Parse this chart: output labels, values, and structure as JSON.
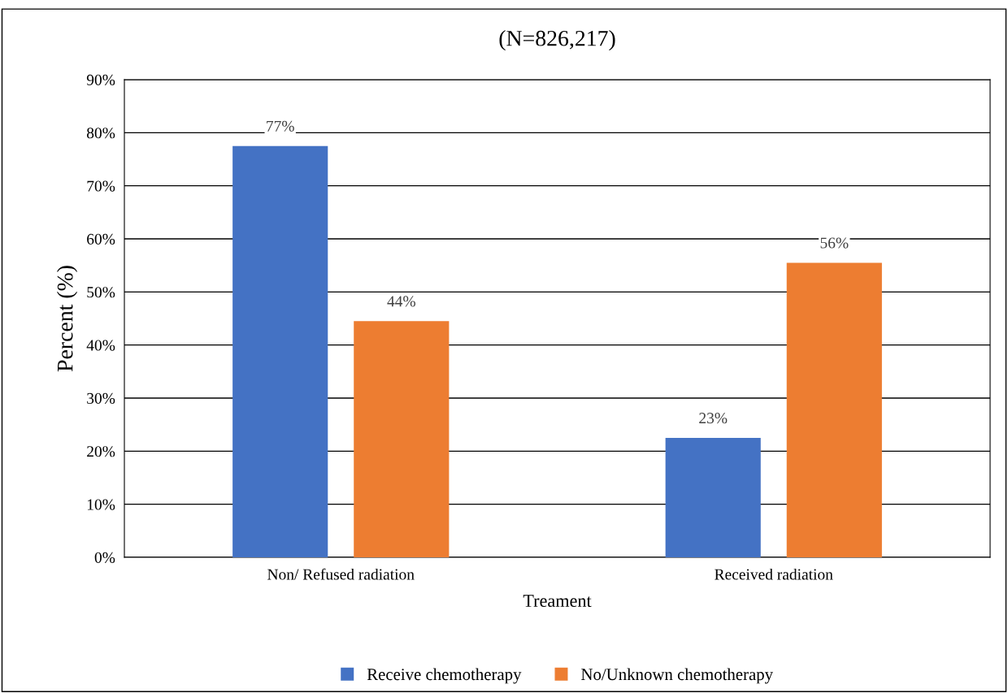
{
  "chart_data": {
    "type": "bar",
    "title": "(N=826,217)",
    "xlabel": "Treament",
    "ylabel": "Percent (%)",
    "categories": [
      "Non/ Refused radiation",
      "Received radiation"
    ],
    "series": [
      {
        "name": "Receive chemotherapy",
        "color": "#4472c4",
        "values": [
          77.5,
          22.5
        ],
        "value_labels": [
          "77%",
          "23%"
        ]
      },
      {
        "name": "No/Unknown chemotherapy",
        "color": "#ed7d31",
        "values": [
          44.5,
          55.5
        ],
        "value_labels": [
          "44%",
          "56%"
        ]
      }
    ],
    "ylim": [
      0,
      90
    ],
    "yticks": [
      {
        "value": 0,
        "label": "0%"
      },
      {
        "value": 10,
        "label": "10%"
      },
      {
        "value": 20,
        "label": "20%"
      },
      {
        "value": 30,
        "label": "30%"
      },
      {
        "value": 40,
        "label": "40%"
      },
      {
        "value": 50,
        "label": "50%"
      },
      {
        "value": 60,
        "label": "60%"
      },
      {
        "value": 70,
        "label": "70%"
      },
      {
        "value": 80,
        "label": "80%"
      },
      {
        "value": 90,
        "label": "90%"
      }
    ],
    "grid": "y",
    "legend": "bottom"
  }
}
